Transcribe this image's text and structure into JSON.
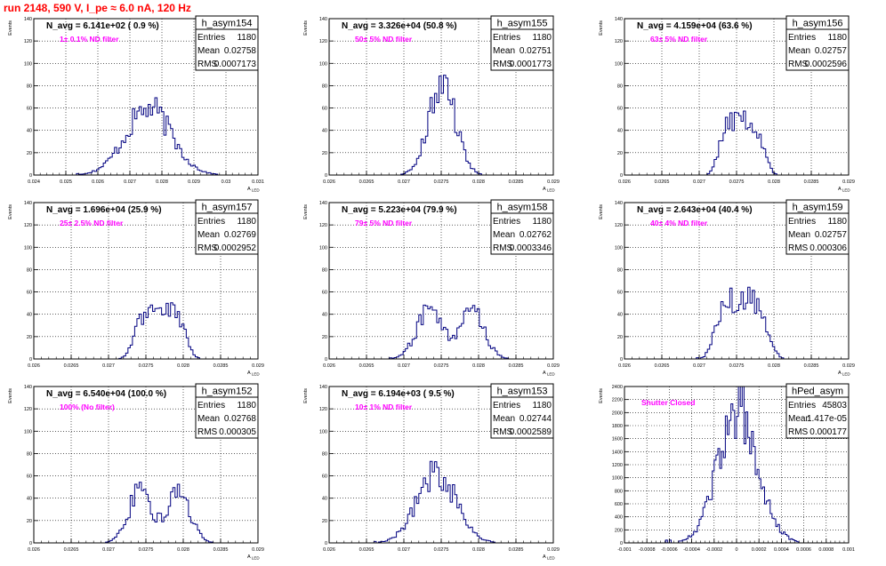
{
  "run_title": "run 2148,   590 V, I_pe ≈ 6.0 nA, 120 Hz",
  "stat_labels": {
    "entries": "Entries",
    "mean": "Mean",
    "rms": "RMS"
  },
  "colors": {
    "hist": "#000080",
    "filter": "#ff00ff",
    "title": "#ff0000",
    "grid": "#000000"
  },
  "chart_data": [
    {
      "type": "bar",
      "name": "h_asym154",
      "entries": "1180",
      "mean": "0.02758",
      "rms": "0.0007173",
      "navg": "N_avg = 6.141e+02 ( 0.9 %)",
      "filter": "1± 0.1% ND filter",
      "xlabel": "A_LED",
      "ylabel": "Events",
      "xlim": [
        0.024,
        0.031
      ],
      "ylim": [
        0,
        140
      ],
      "xticks": [
        "0.024",
        "0.025",
        "0.026",
        "0.027",
        "0.028",
        "0.029",
        "0.03",
        "0.031"
      ],
      "yticks": [
        "0",
        "20",
        "40",
        "60",
        "80",
        "100",
        "120",
        "140"
      ],
      "mu": 0.02758,
      "sigma": 0.0007173,
      "peak": 63,
      "shape": "single"
    },
    {
      "type": "bar",
      "name": "h_asym155",
      "entries": "1180",
      "mean": "0.02751",
      "rms": "0.0001773",
      "navg": "N_avg = 3.326e+04 (50.8 %)",
      "filter": "50± 5% ND filter",
      "xlabel": "A_LED",
      "ylabel": "Events",
      "xlim": [
        0.026,
        0.029
      ],
      "ylim": [
        0,
        140
      ],
      "xticks": [
        "0.026",
        "0.0265",
        "0.027",
        "0.0275",
        "0.028",
        "0.0285",
        "0.029"
      ],
      "yticks": [
        "0",
        "20",
        "40",
        "60",
        "80",
        "100",
        "120",
        "140"
      ],
      "mu": 0.02751,
      "sigma": 0.0001773,
      "peak": 88,
      "shape": "single"
    },
    {
      "type": "bar",
      "name": "h_asym156",
      "entries": "1180",
      "mean": "0.02757",
      "rms": "0.0002596",
      "navg": "N_avg = 4.159e+04 (63.6 %)",
      "filter": "63± 5% ND filter",
      "xlabel": "A_LED",
      "ylabel": "Events",
      "xlim": [
        0.026,
        0.029
      ],
      "ylim": [
        0,
        140
      ],
      "xticks": [
        "0.026",
        "0.0265",
        "0.027",
        "0.0275",
        "0.028",
        "0.0285",
        "0.029"
      ],
      "yticks": [
        "0",
        "20",
        "40",
        "60",
        "80",
        "100",
        "120",
        "140"
      ],
      "mu": 0.02757,
      "sigma": 0.0002596,
      "peak": 53,
      "shape": "broad"
    },
    {
      "type": "bar",
      "name": "h_asym157",
      "entries": "1180",
      "mean": "0.02769",
      "rms": "0.0002952",
      "navg": "N_avg = 1.696e+04 (25.9 %)",
      "filter": "25± 2.5% ND filter",
      "xlabel": "A_LED",
      "ylabel": "Events",
      "xlim": [
        0.026,
        0.029
      ],
      "ylim": [
        0,
        140
      ],
      "xticks": [
        "0.026",
        "0.0265",
        "0.027",
        "0.0275",
        "0.028",
        "0.0285",
        "0.029"
      ],
      "yticks": [
        "0",
        "20",
        "40",
        "60",
        "80",
        "100",
        "120",
        "140"
      ],
      "mu": 0.02769,
      "sigma": 0.0002952,
      "peak": 48,
      "shape": "broad"
    },
    {
      "type": "bar",
      "name": "h_asym158",
      "entries": "1180",
      "mean": "0.02762",
      "rms": "0.0003346",
      "navg": "N_avg = 5.223e+04 (79.9 %)",
      "filter": "79± 5% ND filter",
      "xlabel": "A_LED",
      "ylabel": "Events",
      "xlim": [
        0.026,
        0.029
      ],
      "ylim": [
        0,
        140
      ],
      "xticks": [
        "0.026",
        "0.0265",
        "0.027",
        "0.0275",
        "0.028",
        "0.0285",
        "0.029"
      ],
      "yticks": [
        "0",
        "20",
        "40",
        "60",
        "80",
        "100",
        "120",
        "140"
      ],
      "mu": 0.02762,
      "sigma": 0.0003346,
      "peak": 49,
      "shape": "double"
    },
    {
      "type": "bar",
      "name": "h_asym159",
      "entries": "1180",
      "mean": "0.02757",
      "rms": "0.000306",
      "navg": "N_avg = 2.643e+04 (40.4 %)",
      "filter": "40± 4% ND filter",
      "xlabel": "A_LED",
      "ylabel": "Events",
      "xlim": [
        0.026,
        0.029
      ],
      "ylim": [
        0,
        140
      ],
      "xticks": [
        "0.026",
        "0.0265",
        "0.027",
        "0.0275",
        "0.028",
        "0.0285",
        "0.029"
      ],
      "yticks": [
        "0",
        "20",
        "40",
        "60",
        "80",
        "100",
        "120",
        "140"
      ],
      "mu": 0.02757,
      "sigma": 0.000306,
      "peak": 57,
      "shape": "broad"
    },
    {
      "type": "bar",
      "name": "h_asym152",
      "entries": "1180",
      "mean": "0.02768",
      "rms": "0.000305",
      "navg": "N_avg = 6.540e+04 (100.0 %)",
      "filter": "100% (No filter)",
      "xlabel": "A_LED",
      "ylabel": "Events",
      "xlim": [
        0.026,
        0.029
      ],
      "ylim": [
        0,
        140
      ],
      "xticks": [
        "0.026",
        "0.0265",
        "0.027",
        "0.0275",
        "0.028",
        "0.0285",
        "0.029"
      ],
      "yticks": [
        "0",
        "20",
        "40",
        "60",
        "80",
        "100",
        "120",
        "140"
      ],
      "mu": 0.02768,
      "sigma": 0.000305,
      "peak": 53,
      "shape": "double"
    },
    {
      "type": "bar",
      "name": "h_asym153",
      "entries": "1180",
      "mean": "0.02744",
      "rms": "0.0002589",
      "navg": "N_avg = 6.194e+03 ( 9.5 %)",
      "filter": "10± 1% ND filter",
      "xlabel": "A_LED",
      "ylabel": "Events",
      "xlim": [
        0.026,
        0.029
      ],
      "ylim": [
        0,
        140
      ],
      "xticks": [
        "0.026",
        "0.0265",
        "0.027",
        "0.0275",
        "0.028",
        "0.0285",
        "0.029"
      ],
      "yticks": [
        "0",
        "20",
        "40",
        "60",
        "80",
        "100",
        "120",
        "140"
      ],
      "mu": 0.02744,
      "sigma": 0.0002589,
      "peak": 66,
      "shape": "single"
    },
    {
      "type": "bar",
      "name": "hPed_asym",
      "entries": "45803",
      "mean": "1.417e-05",
      "rms": "0.000177",
      "navg": "",
      "filter": "Shutter Closed",
      "xlabel": "",
      "ylabel": "Events",
      "xlim": [
        -0.001,
        0.001
      ],
      "ylim": [
        0,
        2400
      ],
      "xticks": [
        "-0.001",
        "-0.0008",
        "-0.0006",
        "-0.0004",
        "-0.0002",
        "0",
        "0.0002",
        "0.0004",
        "0.0006",
        "0.0008",
        "0.001"
      ],
      "yticks": [
        "0",
        "200",
        "400",
        "600",
        "800",
        "1000",
        "1200",
        "1400",
        "1600",
        "1800",
        "2000",
        "2200",
        "2400"
      ],
      "mu": 1.417e-05,
      "sigma": 0.000177,
      "peak": 2150,
      "shape": "single"
    }
  ]
}
